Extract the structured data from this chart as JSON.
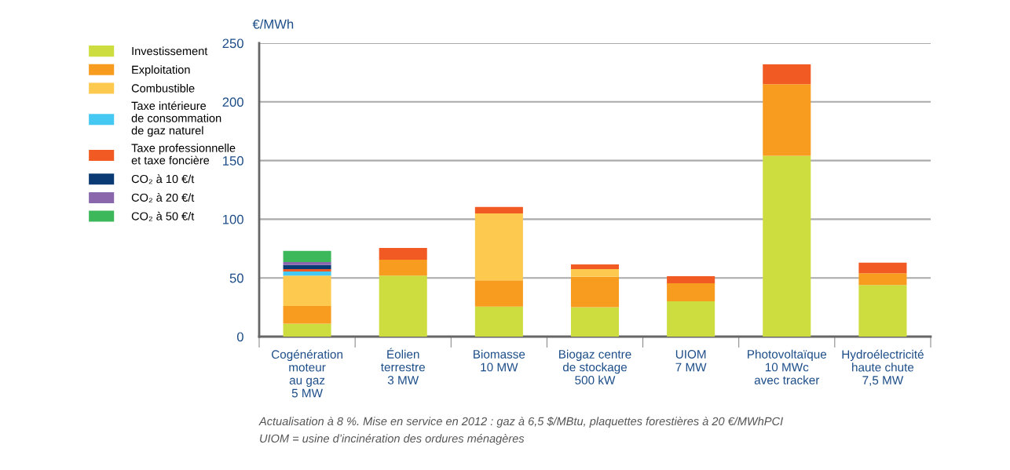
{
  "chart_data": {
    "type": "bar",
    "stacked": true,
    "ylabel": "€/MWh",
    "categories": [
      "Cogénération\nmoteur\nau gaz\n5 MW",
      "Éolien\nterrestre\n3 MW",
      "Biomasse\n10 MW",
      "Biogaz centre\nde stockage\n500 kW",
      "UIOM\n7 MW",
      "Photovoltaïque\n10 MWc\navec tracker",
      "Hydroélectricité\nhaute chute\n7,5 MW"
    ],
    "series": [
      {
        "name": "Investissement",
        "color": "#cddc3e",
        "values": [
          11,
          52,
          25.5,
          25,
          30,
          154,
          44
        ]
      },
      {
        "name": "Exploitation",
        "color": "#f79c1e",
        "values": [
          15,
          13.5,
          22.5,
          26,
          15.5,
          61,
          10
        ]
      },
      {
        "name": "Combustible",
        "color": "#fdca4f",
        "values": [
          26,
          null,
          57,
          6.5,
          null,
          null,
          null
        ]
      },
      {
        "name": "Taxe intérieure\nde consommation\nde gaz naturel",
        "color": "#45c8f1",
        "values": [
          3.5,
          null,
          null,
          null,
          null,
          null,
          null
        ]
      },
      {
        "name": "Taxe professionnelle\net taxe foncière",
        "color": "#f15a22",
        "values": [
          2,
          10,
          5.5,
          4,
          6,
          17,
          9
        ]
      },
      {
        "name": "CO₂ à 10 €/t",
        "color": "#0a3a73",
        "values": [
          3.5,
          null,
          null,
          null,
          null,
          null,
          null
        ]
      },
      {
        "name": "CO₂ à 20 €/t",
        "color": "#8a67ad",
        "values": [
          2.5,
          null,
          null,
          null,
          null,
          null,
          null
        ]
      },
      {
        "name": "CO₂ à 50 €/t",
        "color": "#3cb85a",
        "values": [
          9.5,
          null,
          null,
          null,
          null,
          null,
          null
        ]
      }
    ],
    "ylim": [
      0,
      250
    ],
    "yticks": [
      0,
      50,
      100,
      150,
      200,
      250
    ],
    "grid": "y",
    "legend": "left",
    "annotations": [
      "Actualisation à 8 %. Mise en service en 2012 : gaz à 6,5 $/MBtu, plaquettes forestières à 20 €/MWhPCI",
      "UIOM = usine d’incinération des ordures ménagères"
    ]
  }
}
